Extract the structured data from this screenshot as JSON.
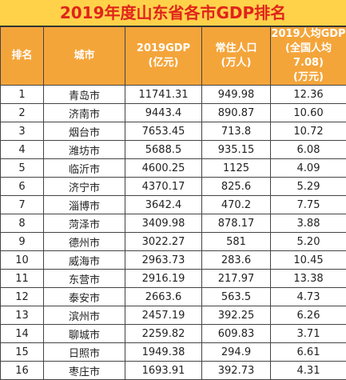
{
  "title": "2019年度山东省各市GDP排名",
  "columns": [
    {
      "lines": [
        "排名"
      ]
    },
    {
      "lines": [
        "城市"
      ]
    },
    {
      "lines": [
        "2019GDP",
        "(亿元)"
      ]
    },
    {
      "lines": [
        "常住人口",
        "(万人)"
      ]
    },
    {
      "lines": [
        "2019人均GDP",
        "(全国人均7.08)",
        "(万元)"
      ]
    }
  ],
  "rows": [
    [
      "1",
      "青岛市",
      "11741.31",
      "949.98",
      "12.36"
    ],
    [
      "2",
      "济南市",
      "9443.4",
      "890.87",
      "10.60"
    ],
    [
      "3",
      "烟台市",
      "7653.45",
      "713.8",
      "10.72"
    ],
    [
      "4",
      "潍坊市",
      "5688.5",
      "935.15",
      "6.08"
    ],
    [
      "5",
      "临沂市",
      "4600.25",
      "1125",
      "4.09"
    ],
    [
      "6",
      "济宁市",
      "4370.17",
      "825.6",
      "5.29"
    ],
    [
      "7",
      "淄博市",
      "3642.4",
      "470.2",
      "7.75"
    ],
    [
      "8",
      "菏泽市",
      "3409.98",
      "878.17",
      "3.88"
    ],
    [
      "9",
      "德州市",
      "3022.27",
      "581",
      "5.20"
    ],
    [
      "10",
      "威海市",
      "2963.73",
      "283.6",
      "10.45"
    ],
    [
      "11",
      "东营市",
      "2916.19",
      "217.97",
      "13.38"
    ],
    [
      "12",
      "泰安市",
      "2663.6",
      "563.5",
      "4.73"
    ],
    [
      "13",
      "滨州市",
      "2457.19",
      "392.25",
      "6.26"
    ],
    [
      "14",
      "聊城市",
      "2259.82",
      "609.83",
      "3.71"
    ],
    [
      "15",
      "日照市",
      "1949.38",
      "294.9",
      "6.61"
    ],
    [
      "16",
      "枣庄市",
      "1693.91",
      "392.73",
      "4.31"
    ]
  ],
  "colors": {
    "title_bg": "#ffd24a",
    "title_text": "#e0241b",
    "header_bg": "#f4a53a",
    "header_text": "#ffffff",
    "border": "#444444"
  }
}
